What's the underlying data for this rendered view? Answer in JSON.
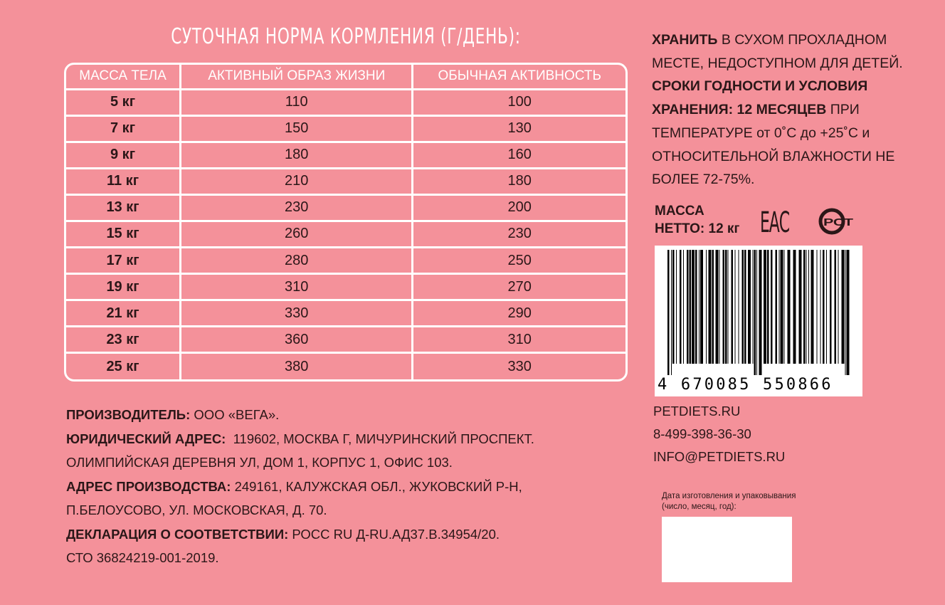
{
  "feeding": {
    "title": "СУТОЧНАЯ НОРМА КОРМЛЕНИЯ (Г/ДЕНЬ):",
    "headers": [
      "МАССА ТЕЛА",
      "АКТИВНЫЙ ОБРАЗ ЖИЗНИ",
      "ОБЫЧНАЯ АКТИВНОСТЬ"
    ],
    "rows": [
      [
        "5 кг",
        "110",
        "100"
      ],
      [
        "7 кг",
        "150",
        "130"
      ],
      [
        "9 кг",
        "180",
        "160"
      ],
      [
        "11 кг",
        "210",
        "180"
      ],
      [
        "13 кг",
        "230",
        "200"
      ],
      [
        "15 кг",
        "260",
        "230"
      ],
      [
        "17 кг",
        "280",
        "250"
      ],
      [
        "19 кг",
        "310",
        "270"
      ],
      [
        "21 кг",
        "330",
        "290"
      ],
      [
        "23 кг",
        "360",
        "310"
      ],
      [
        "25 кг",
        "380",
        "330"
      ]
    ]
  },
  "storage": {
    "store_bold": "ХРАНИТЬ",
    "store_text": " В СУХОМ ПРОХЛАДНОМ МЕСТЕ, НЕДОСТУПНОМ ДЛЯ ДЕТЕЙ.",
    "shelf_bold": "СРОКИ ГОДНОСТИ И УСЛОВИЯ ХРАНЕНИЯ: 12 МЕСЯЦЕВ",
    "shelf_text": " ПРИ ТЕМПЕРАТУРЕ от 0˚С до +25˚С и ОТНОСИТЕЛЬНОЙ ВЛАЖНОСТИ НЕ БОЛЕЕ 72-75%."
  },
  "net_mass": {
    "line1": "МАССА",
    "line2": "НЕТТО: 12 кг"
  },
  "marks": {
    "eac": "ЕАС",
    "rst": "РСТ"
  },
  "barcode": {
    "digits": "4 670085 550866"
  },
  "contacts": {
    "site": "PETDIETS.RU",
    "phone": "8-499-398-36-30",
    "email": "INFO@PETDIETS.RU"
  },
  "producer": {
    "maker_label": "ПРОИЗВОДИТЕЛЬ:",
    "maker": " ООО «ВЕГА».",
    "legal_label": "ЮРИДИЧЕСКИЙ АДРЕС:",
    "legal_1": "  119602, МОСКВА Г, МИЧУРИНСКИЙ ПРОСПЕКТ.",
    "legal_2": "ОЛИМПИЙСКАЯ ДЕРЕВНЯ УЛ, ДОМ 1, КОРПУС 1, ОФИС 103.",
    "prod_label": "АДРЕС ПРОИЗВОДСТВА:",
    "prod_1": " 249161, КАЛУЖСКАЯ ОБЛ., ЖУКОВСКИЙ Р-Н,",
    "prod_2": "П.БЕЛОУСОВО, УЛ. МОСКОВСКАЯ, Д. 70.",
    "decl_label": "ДЕКЛАРАЦИЯ О СООТВЕТСТВИИ:",
    "decl": " РОСС RU Д-RU.АД37.В.34954/20.",
    "sto": "СТО 36824219-001-2019."
  },
  "date_field": {
    "label_1": "Дата изготовления и упаковывания",
    "label_2": "(число, месяц, год):",
    "value": ""
  }
}
